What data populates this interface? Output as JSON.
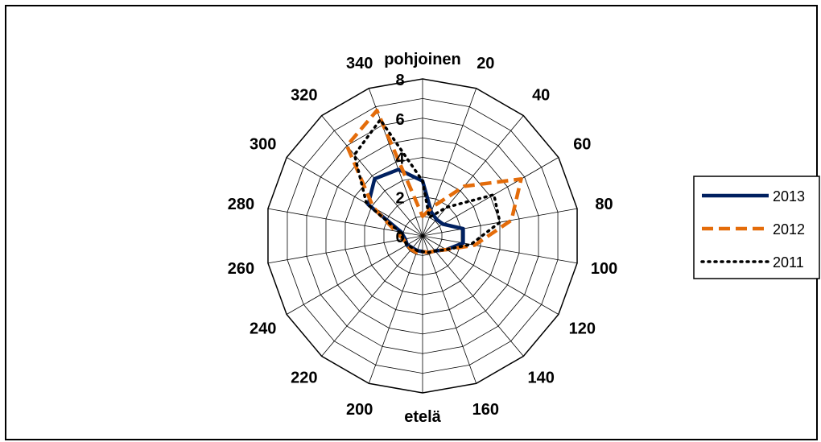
{
  "chart_data": {
    "type": "radar",
    "labels": {
      "north": "pohjoinen",
      "south": "etelä"
    },
    "angles": [
      0,
      20,
      40,
      60,
      80,
      100,
      120,
      140,
      160,
      180,
      200,
      220,
      240,
      260,
      280,
      300,
      320,
      340
    ],
    "angle_labels": [
      "",
      "20",
      "40",
      "60",
      "80",
      "100",
      "120",
      "140",
      "160",
      "",
      "200",
      "220",
      "240",
      "260",
      "280",
      "300",
      "320",
      "340"
    ],
    "radial_ticks": [
      "0",
      "2",
      "4",
      "6",
      "8"
    ],
    "rlim": [
      0,
      8
    ],
    "grid": true,
    "legend_position": "right",
    "series": [
      {
        "name": "2013",
        "color": "#002060",
        "dash": "solid",
        "values": [
          2.8,
          1.3,
          1.1,
          1.2,
          2.1,
          2.1,
          1.4,
          1.0,
          0.9,
          0.8,
          0.8,
          0.8,
          0.9,
          0.9,
          1.1,
          3.2,
          3.8,
          3.6
        ]
      },
      {
        "name": "2012",
        "color": "#E46C0A",
        "dash": "dashed",
        "values": [
          1.0,
          1.6,
          3.3,
          5.8,
          4.6,
          2.7,
          1.4,
          1.0,
          0.9,
          0.8,
          0.9,
          0.9,
          0.9,
          1.0,
          1.4,
          2.9,
          6.0,
          6.8
        ]
      },
      {
        "name": "2011",
        "color": "#000000",
        "dash": "dotted",
        "values": [
          2.8,
          1.0,
          1.9,
          4.2,
          4.0,
          2.5,
          1.4,
          1.0,
          0.9,
          0.8,
          0.8,
          0.8,
          0.9,
          1.0,
          1.2,
          3.3,
          5.4,
          6.3
        ]
      }
    ]
  }
}
